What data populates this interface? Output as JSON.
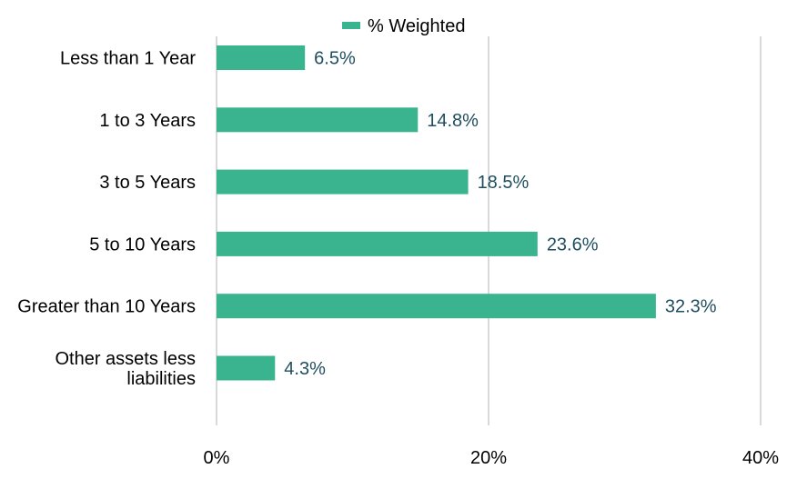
{
  "chart_data": {
    "type": "bar",
    "orientation": "horizontal",
    "categories": [
      [
        "Less than 1 Year"
      ],
      [
        "1 to 3 Years"
      ],
      [
        "3 to 5 Years"
      ],
      [
        "5 to 10 Years"
      ],
      [
        "Greater than 10 Years"
      ],
      [
        "Other assets less",
        "liabilities"
      ]
    ],
    "series": [
      {
        "name": "% Weighted",
        "values": [
          6.5,
          14.8,
          18.5,
          23.6,
          32.3,
          4.3
        ],
        "data_labels": [
          "6.5%",
          "14.8%",
          "18.5%",
          "23.6%",
          "32.3%",
          "4.3%"
        ]
      }
    ],
    "xlim": [
      0,
      40
    ],
    "x_ticks": [
      0,
      20,
      40
    ],
    "x_tick_labels": [
      "0%",
      "20%",
      "40%"
    ],
    "grid": "vertical",
    "legend_position": "top-center",
    "colors": {
      "bar": "#3AB48E",
      "grid": "#D9D9D9",
      "axis_text": "#000000",
      "data_label": "#1F4E5F"
    }
  }
}
